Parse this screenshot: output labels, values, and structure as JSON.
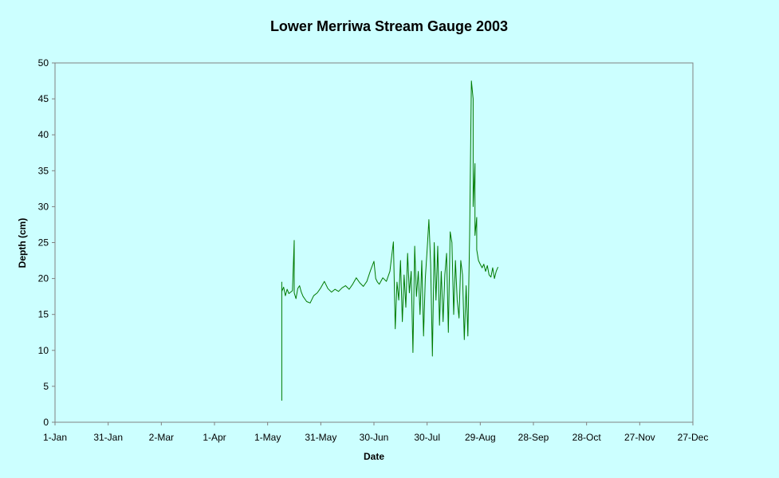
{
  "chart_data": {
    "type": "line",
    "title": "Lower Merriwa Stream Gauge 2003",
    "xlabel": "Date",
    "ylabel": "Depth (cm)",
    "x_axis": {
      "kind": "date",
      "range": [
        "1-Jan",
        "27-Dec"
      ],
      "tick_labels": [
        "1-Jan",
        "31-Jan",
        "2-Mar",
        "1-Apr",
        "1-May",
        "31-May",
        "30-Jun",
        "30-Jul",
        "29-Aug",
        "28-Sep",
        "28-Oct",
        "27-Nov",
        "27-Dec"
      ]
    },
    "y_axis": {
      "range": [
        0,
        50
      ],
      "tick_labels": [
        "0",
        "5",
        "10",
        "15",
        "20",
        "25",
        "30",
        "35",
        "40",
        "45",
        "50"
      ]
    },
    "grid": false,
    "legend": "none",
    "colors": {
      "background": "#ccffff",
      "plot_area": "#ccffff",
      "series": "#007a00",
      "axis": "#808080"
    },
    "series": [
      {
        "x": [
          "9-May",
          "9-May",
          "9-May",
          "10-May",
          "11-May",
          "12-May",
          "13-May",
          "15-May",
          "16-May",
          "16-May",
          "17-May",
          "18-May",
          "19-May",
          "20-May",
          "21-May",
          "23-May",
          "25-May",
          "27-May",
          "29-May",
          "31-May",
          "2-Jun",
          "4-Jun",
          "6-Jun",
          "8-Jun",
          "10-Jun",
          "12-Jun",
          "14-Jun",
          "16-Jun",
          "18-Jun",
          "20-Jun",
          "22-Jun",
          "24-Jun",
          "26-Jun",
          "28-Jun",
          "30-Jun",
          "1-Jul",
          "2-Jul",
          "3-Jul",
          "5-Jul",
          "7-Jul",
          "9-Jul",
          "11-Jul",
          "12-Jul",
          "13-Jul",
          "14-Jul",
          "15-Jul",
          "16-Jul",
          "17-Jul",
          "18-Jul",
          "19-Jul",
          "20-Jul",
          "21-Jul",
          "22-Jul",
          "23-Jul",
          "24-Jul",
          "25-Jul",
          "26-Jul",
          "27-Jul",
          "28-Jul",
          "29-Jul",
          "30-Jul",
          "31-Jul",
          "1-Aug",
          "2-Aug",
          "3-Aug",
          "4-Aug",
          "5-Aug",
          "6-Aug",
          "7-Aug",
          "8-Aug",
          "9-Aug",
          "10-Aug",
          "11-Aug",
          "12-Aug",
          "13-Aug",
          "14-Aug",
          "15-Aug",
          "16-Aug",
          "17-Aug",
          "18-Aug",
          "19-Aug",
          "20-Aug",
          "21-Aug",
          "22-Aug",
          "23-Aug",
          "24-Aug",
          "25-Aug",
          "25-Aug",
          "26-Aug",
          "26-Aug",
          "27-Aug",
          "27-Aug",
          "28-Aug",
          "29-Aug",
          "30-Aug",
          "31-Aug",
          "1-Sep",
          "2-Sep",
          "3-Sep",
          "4-Sep",
          "5-Sep",
          "6-Sep",
          "7-Sep",
          "8-Sep"
        ],
        "values": [
          3,
          19.5,
          18.2,
          18.8,
          17.6,
          18.5,
          17.9,
          18.3,
          25.3,
          18.0,
          17.2,
          18.6,
          19.0,
          18.1,
          17.5,
          16.8,
          16.6,
          17.6,
          18.0,
          18.7,
          19.6,
          18.6,
          18.1,
          18.5,
          18.2,
          18.7,
          19.0,
          18.5,
          19.2,
          20.1,
          19.4,
          18.9,
          19.6,
          21.1,
          22.4,
          20.0,
          19.5,
          19.2,
          20.1,
          19.6,
          21.0,
          25.1,
          13.0,
          19.5,
          17.0,
          22.5,
          14.0,
          20.5,
          16.0,
          23.5,
          18.0,
          21.0,
          9.7,
          24.5,
          17.5,
          21.0,
          15.0,
          22.5,
          12.0,
          20.0,
          24.0,
          28.2,
          22.0,
          9.2,
          25.0,
          17.0,
          24.5,
          13.5,
          21.0,
          14.0,
          20.5,
          23.5,
          12.5,
          26.5,
          25.0,
          15.0,
          22.5,
          17.0,
          14.5,
          22.5,
          20.5,
          11.5,
          19.0,
          12.0,
          26.0,
          47.5,
          45.0,
          30.0,
          36.0,
          26.0,
          28.5,
          24.0,
          22.5,
          22.0,
          21.5,
          22.0,
          21.0,
          21.8,
          20.5,
          20.2,
          21.5,
          20.0,
          21.0,
          21.6
        ]
      }
    ]
  }
}
